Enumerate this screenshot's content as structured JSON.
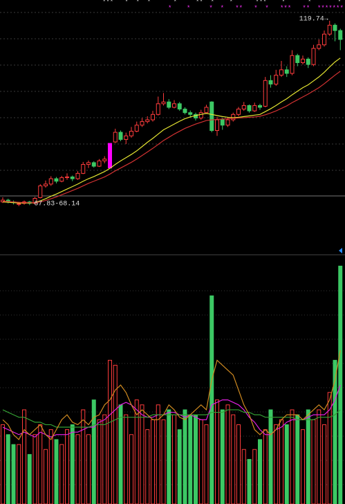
{
  "chart_data": {
    "type": "candlestick",
    "ylim": [
      54.2,
      125.55
    ],
    "volume_ylim": [
      0,
      100
    ],
    "up_color": "#ff3c3c",
    "down_color": "#3cc864",
    "highlight_index": 20,
    "highlight_color": "#ff00ff",
    "open": [
      69.0,
      69.5,
      69.0,
      68.4,
      68.6,
      69.0,
      68.6,
      70.2,
      73.5,
      74.0,
      75.5,
      74.8,
      75.8,
      76.0,
      75.5,
      77.0,
      79.5,
      80.0,
      79.0,
      80.5,
      78.5,
      85.8,
      88.5,
      86.5,
      87.5,
      88.8,
      90.5,
      91.5,
      92.0,
      93.5,
      96.5,
      97.0,
      95.5,
      96.5,
      95.0,
      94.0,
      93.5,
      92.5,
      94.0,
      97.0,
      89.0,
      92.0,
      90.5,
      92.0,
      93.5,
      95.0,
      96.0,
      94.5,
      96.0,
      95.8,
      103.0,
      102.0,
      104.5,
      106.0,
      105.0,
      110.0,
      108.0,
      109.0,
      107.5,
      112.0,
      113.0,
      116.0,
      118.5,
      117.0
    ],
    "high": [
      70.3,
      69.9,
      69.4,
      69.0,
      69.4,
      69.3,
      70.4,
      74.0,
      75.0,
      76.2,
      76.0,
      76.3,
      77.0,
      76.4,
      77.6,
      80.2,
      80.6,
      80.4,
      81.0,
      81.8,
      85.4,
      89.5,
      89.0,
      88.4,
      90.0,
      91.5,
      92.5,
      93.0,
      94.5,
      98.5,
      99.5,
      97.8,
      97.5,
      97.0,
      95.5,
      94.6,
      94.0,
      94.8,
      96.2,
      97.2,
      92.8,
      92.5,
      92.8,
      94.0,
      95.6,
      97.0,
      96.3,
      96.8,
      96.5,
      104.0,
      104.5,
      106.0,
      108.5,
      107.0,
      111.5,
      110.5,
      110.0,
      109.5,
      113.0,
      114.5,
      117.0,
      119.74,
      119.0,
      117.5
    ],
    "low": [
      68.7,
      68.6,
      68.3,
      67.83,
      68.2,
      68.1,
      68.4,
      70.0,
      73.0,
      73.5,
      74.2,
      74.5,
      75.2,
      74.8,
      75.2,
      76.8,
      78.5,
      78.6,
      78.8,
      79.8,
      78.5,
      85.5,
      86.0,
      85.2,
      87.0,
      88.5,
      90.0,
      91.0,
      91.5,
      93.2,
      96.0,
      95.0,
      95.2,
      94.5,
      93.5,
      92.8,
      91.8,
      92.0,
      93.8,
      88.5,
      87.5,
      89.2,
      90.0,
      91.5,
      93.0,
      94.5,
      94.0,
      94.2,
      94.8,
      95.5,
      101.0,
      101.5,
      104.0,
      104.0,
      104.5,
      107.0,
      107.5,
      106.5,
      107.0,
      111.5,
      112.5,
      115.5,
      114.0,
      111.5
    ],
    "close": [
      69.5,
      69.0,
      68.8,
      68.5,
      69.0,
      68.6,
      70.0,
      73.5,
      74.0,
      75.5,
      74.8,
      75.8,
      76.0,
      75.5,
      77.0,
      79.5,
      80.0,
      79.0,
      80.5,
      81.0,
      85.4,
      88.5,
      86.5,
      87.5,
      88.8,
      90.5,
      91.5,
      92.0,
      93.5,
      96.5,
      97.0,
      95.5,
      96.5,
      95.0,
      94.0,
      93.5,
      92.5,
      94.0,
      95.5,
      89.0,
      92.0,
      90.5,
      92.0,
      93.5,
      95.0,
      96.0,
      94.5,
      96.0,
      95.5,
      103.0,
      102.0,
      104.5,
      106.0,
      105.0,
      110.0,
      108.0,
      109.0,
      107.5,
      112.0,
      113.0,
      116.0,
      118.5,
      117.0,
      114.5
    ],
    "volume": [
      32,
      28,
      24,
      24,
      38,
      20,
      28,
      32,
      22,
      30,
      26,
      24,
      30,
      32,
      28,
      38,
      28,
      42,
      34,
      36,
      58,
      56,
      40,
      36,
      28,
      42,
      40,
      30,
      34,
      40,
      34,
      38,
      36,
      30,
      38,
      36,
      36,
      34,
      32,
      84,
      42,
      38,
      40,
      36,
      32,
      22,
      18,
      22,
      26,
      30,
      38,
      32,
      34,
      32,
      38,
      36,
      30,
      38,
      34,
      38,
      32,
      45,
      58,
      96
    ],
    "ma_price": [
      {
        "color": "#e6e632",
        "values": [
          69.0,
          68.9,
          68.8,
          68.7,
          68.7,
          68.7,
          68.8,
          69.3,
          69.9,
          70.6,
          71.2,
          71.9,
          72.6,
          73.3,
          74.0,
          74.8,
          75.5,
          76.1,
          76.8,
          77.5,
          78.4,
          79.5,
          80.5,
          81.4,
          82.3,
          83.3,
          84.5,
          85.7,
          86.8,
          88.0,
          89.2,
          90.0,
          90.8,
          91.6,
          92.3,
          92.8,
          93.2,
          93.5,
          93.8,
          93.5,
          93.2,
          92.9,
          92.7,
          92.6,
          92.7,
          92.9,
          93.1,
          93.3,
          93.5,
          94.3,
          95.1,
          96.0,
          97.0,
          97.9,
          99.0,
          100.0,
          101.0,
          101.8,
          102.9,
          104.0,
          105.3,
          106.8,
          108.2,
          109.3
        ]
      },
      {
        "color": "#d23232",
        "values": [
          69.2,
          69.1,
          69.0,
          68.9,
          68.8,
          68.8,
          68.8,
          69.0,
          69.4,
          69.9,
          70.4,
          71.0,
          71.6,
          72.2,
          72.8,
          73.5,
          74.2,
          74.8,
          75.4,
          76.0,
          76.8,
          77.7,
          78.5,
          79.3,
          80.1,
          81.0,
          82.0,
          83.0,
          84.0,
          85.1,
          86.2,
          87.1,
          88.0,
          88.8,
          89.6,
          90.2,
          90.8,
          91.3,
          91.8,
          92.0,
          92.1,
          92.2,
          92.3,
          92.4,
          92.5,
          92.6,
          92.7,
          92.8,
          93.0,
          93.4,
          93.9,
          94.5,
          95.2,
          95.9,
          96.8,
          97.6,
          98.4,
          99.2,
          100.1,
          101.0,
          102.1,
          103.3,
          104.5,
          105.6
        ]
      }
    ],
    "ma_volume": [
      {
        "color": "#e020e0",
        "values": [
          31,
          30,
          29,
          28,
          29,
          28,
          27,
          29,
          28,
          27,
          28,
          28,
          28,
          29,
          29,
          30,
          31,
          31,
          33,
          34,
          36,
          38,
          40,
          41,
          40,
          38,
          36,
          35,
          35,
          36,
          36,
          37,
          37,
          36,
          35,
          36,
          35,
          34,
          34,
          40,
          41,
          42,
          42,
          41,
          40,
          38,
          35,
          33,
          30,
          28,
          28,
          30,
          31,
          33,
          34,
          34,
          34,
          35,
          36,
          36,
          36,
          38,
          42,
          48
        ]
      },
      {
        "color": "#34a034",
        "values": [
          38,
          37,
          36,
          35,
          35,
          34,
          33,
          33,
          32,
          32,
          31,
          31,
          31,
          31,
          31,
          31,
          31,
          32,
          32,
          32,
          33,
          34,
          35,
          35,
          35,
          35,
          35,
          35,
          36,
          36,
          36,
          36,
          36,
          36,
          36,
          36,
          36,
          36,
          36,
          37,
          37,
          37,
          38,
          38,
          38,
          37,
          37,
          36,
          36,
          35,
          35,
          35,
          35,
          35,
          35,
          34,
          34,
          34,
          34,
          35,
          35,
          35,
          36,
          38
        ]
      },
      {
        "color": "#d08a20",
        "values": [
          34,
          32,
          28,
          26,
          30,
          28,
          30,
          32,
          28,
          26,
          30,
          34,
          36,
          33,
          32,
          34,
          32,
          35,
          36,
          40,
          42,
          46,
          48,
          45,
          40,
          36,
          38,
          36,
          34,
          34,
          36,
          40,
          38,
          35,
          34,
          36,
          38,
          40,
          38,
          50,
          58,
          56,
          54,
          52,
          46,
          40,
          36,
          30,
          28,
          30,
          28,
          30,
          34,
          36,
          36,
          36,
          34,
          36,
          38,
          40,
          38,
          42,
          50,
          62
        ]
      }
    ],
    "high_label": "119.74→",
    "low_label": "67.83-68.14",
    "stars_white": "***   *  *  *      *     **  *    *      ***    *      *       *",
    "stars_white_color": "#dcdcdc",
    "stars_magenta": "*    *     *  *   **   *  *   ***   **  *******",
    "stars_magenta_color": "#ff30ff"
  }
}
